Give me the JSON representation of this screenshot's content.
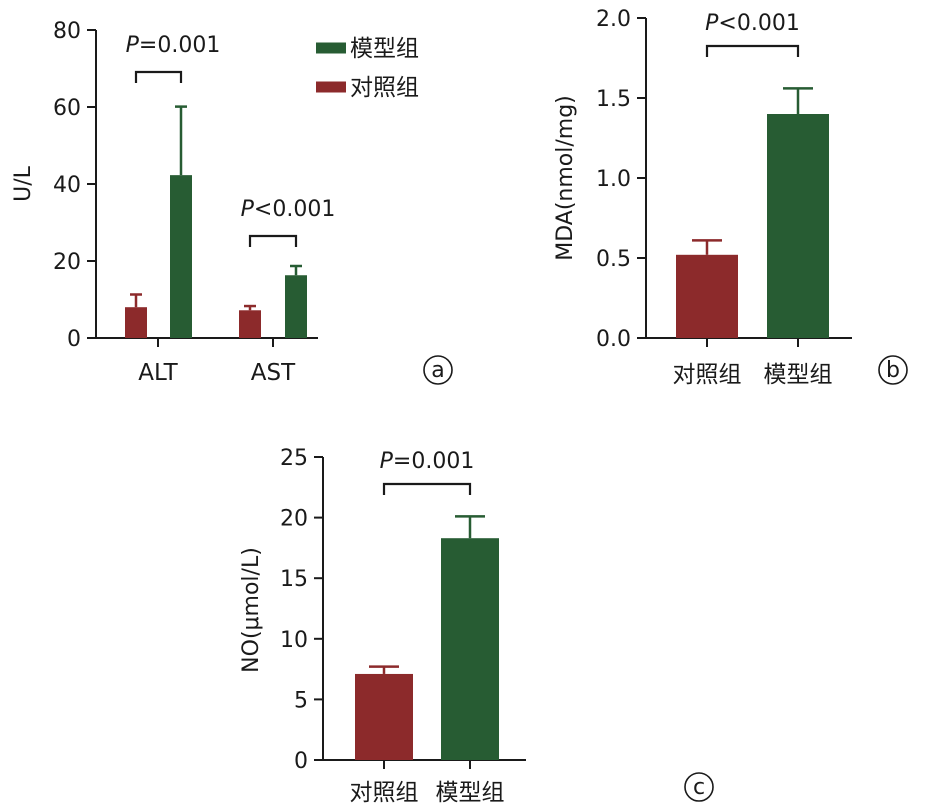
{
  "colors": {
    "control": "#8c2a2b",
    "model": "#275c33",
    "axis": "#1a1a1a"
  },
  "chart_data": [
    {
      "type": "bar",
      "panel": "a",
      "categories": [
        "ALT",
        "AST"
      ],
      "ylabel": "U/L",
      "ylim": [
        0,
        80
      ],
      "yticks": [
        0,
        20,
        40,
        60,
        80
      ],
      "legend": {
        "placement": "top-right",
        "entries": [
          "模型组",
          "对照组"
        ]
      },
      "series": [
        {
          "name": "对照组",
          "values": [
            8,
            7.2
          ],
          "errors": [
            3.3,
            1.1
          ]
        },
        {
          "name": "模型组",
          "values": [
            42.3,
            16.3
          ],
          "errors": [
            17.8,
            2.4
          ]
        }
      ],
      "annotations": [
        {
          "category": "ALT",
          "letter": "P",
          "rest": "=0.001"
        },
        {
          "category": "AST",
          "letter": "P",
          "rest": "<0.001"
        }
      ]
    },
    {
      "type": "bar",
      "panel": "b",
      "categories": [
        "对照组",
        "模型组"
      ],
      "ylabel": "MDA(nmol/mg)",
      "ylim": [
        0,
        2.0
      ],
      "yticks": [
        "0.0",
        "0.5",
        "1.0",
        "1.5",
        "2.0"
      ],
      "values": [
        0.52,
        1.4
      ],
      "errors": [
        0.09,
        0.16
      ],
      "annotation": {
        "letter": "P",
        "rest": "<0.001"
      }
    },
    {
      "type": "bar",
      "panel": "c",
      "categories": [
        "对照组",
        "模型组"
      ],
      "ylabel": "NO(μmol/L)",
      "ylim": [
        0,
        25
      ],
      "yticks": [
        0,
        5,
        10,
        15,
        20,
        25
      ],
      "values": [
        7.1,
        18.3
      ],
      "errors": [
        0.6,
        1.8
      ],
      "annotation": {
        "letter": "P",
        "rest": "=0.001"
      }
    }
  ]
}
